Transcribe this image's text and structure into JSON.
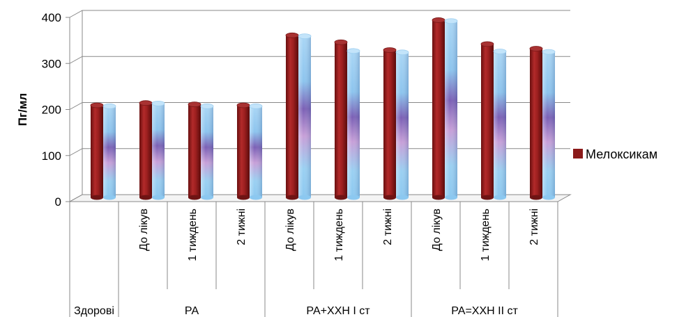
{
  "chart_data": {
    "type": "bar",
    "title": "",
    "ylabel": "Пг/мл",
    "ylim": [
      0,
      400
    ],
    "yticks": [
      0,
      100,
      200,
      300,
      400
    ],
    "categories": [
      "",
      "До лікув",
      "1 тиждень",
      "2 тижні",
      "До лікув",
      "1 тиждень",
      "2 тижні",
      "До лікув",
      "1 тиждень",
      "2 тижні"
    ],
    "groups": [
      {
        "label": "Здорові",
        "span": 1
      },
      {
        "label": "РА",
        "span": 3
      },
      {
        "label": "РА+ХХН І ст",
        "span": 3
      },
      {
        "label": "РА=ХХН ІІ ст",
        "span": 3
      }
    ],
    "series": [
      {
        "name": "Мелоксикам",
        "color": "#8B1A1A",
        "values": [
          200,
          205,
          202,
          200,
          352,
          337,
          320,
          385,
          333,
          323
        ]
      },
      {
        "color": "#8FC8F0",
        "values": [
          198,
          204,
          198,
          198,
          350,
          318,
          315,
          383,
          317,
          316
        ]
      }
    ],
    "legend_position": "right",
    "grid": true
  }
}
